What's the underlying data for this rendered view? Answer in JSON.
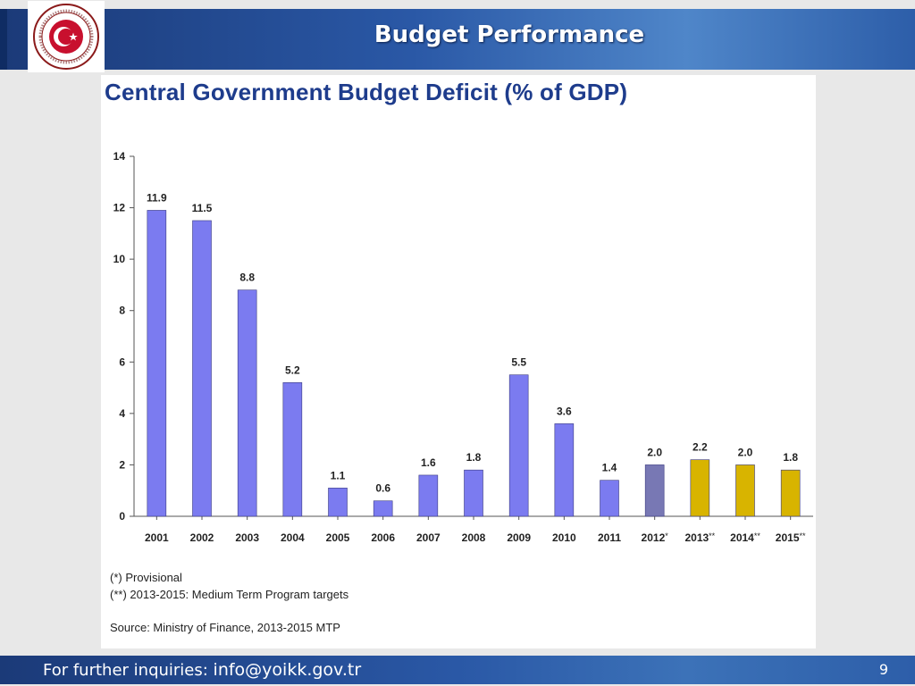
{
  "slide": {
    "title": "Budget Performance",
    "logo_text": "REPUBLIC OF TURKEY MINISTRY OF ECONOMY",
    "footer_text": "For further inquiries: ",
    "footer_email": "info@yoikk.gov.tr",
    "page_number": "9",
    "colors": {
      "header": "#2a58a6",
      "footer": "#2a58a6",
      "logo_red": "#c8102e"
    }
  },
  "chart_data": {
    "type": "bar",
    "title": "Central Government Budget Deficit (% of GDP)",
    "categories": [
      "2001",
      "2002",
      "2003",
      "2004",
      "2005",
      "2006",
      "2007",
      "2008",
      "2009",
      "2010",
      "2011",
      "2012*",
      "2013**",
      "2014**",
      "2015**"
    ],
    "values": [
      11.9,
      11.5,
      8.8,
      5.2,
      1.1,
      0.6,
      1.6,
      1.8,
      5.5,
      3.6,
      1.4,
      2.0,
      2.2,
      2.0,
      1.8
    ],
    "value_labels": [
      "11.9",
      "11.5",
      "8.8",
      "5.2",
      "1.1",
      "0.6",
      "1.6",
      "1.8",
      "5.5",
      "3.6",
      "1.4",
      "2.0",
      "2.2",
      "2.0",
      "1.8"
    ],
    "bar_status": [
      "actual",
      "actual",
      "actual",
      "actual",
      "actual",
      "actual",
      "actual",
      "actual",
      "actual",
      "actual",
      "actual",
      "provisional",
      "target",
      "target",
      "target"
    ],
    "colors": {
      "actual": "#7b7bf0",
      "provisional": "#7878b4",
      "target": "#d8b400"
    },
    "ylim": [
      0,
      14
    ],
    "yticks": [
      "0",
      "2",
      "4",
      "6",
      "8",
      "10",
      "12",
      "14"
    ],
    "grid": false,
    "xlabel": "",
    "ylabel": ""
  },
  "notes": {
    "provisional": "(*) Provisional",
    "targets": "(**) 2013-2015: Medium Term Program targets",
    "source": "Source: Ministry of Finance, 2013-2015 MTP"
  }
}
